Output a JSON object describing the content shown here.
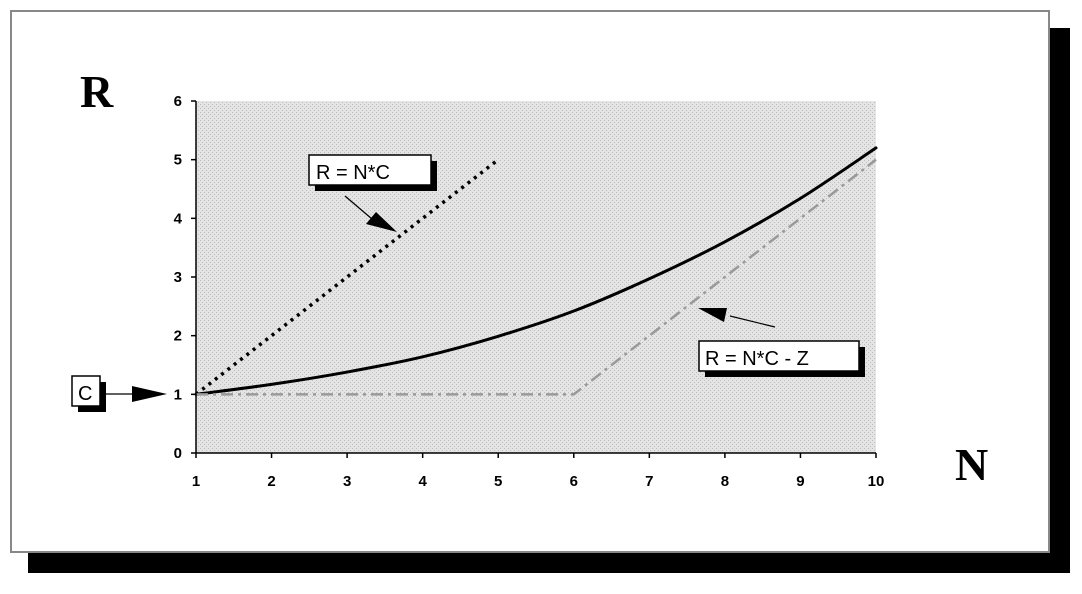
{
  "chart_data": {
    "type": "line",
    "xlabel": "N",
    "ylabel": "R",
    "xlim": [
      1,
      10
    ],
    "ylim": [
      0,
      6
    ],
    "x_ticks": [
      1,
      2,
      3,
      4,
      5,
      6,
      7,
      8,
      9,
      10
    ],
    "y_ticks": [
      0,
      1,
      2,
      3,
      4,
      5,
      6
    ],
    "grid": false,
    "background": "stippled gray",
    "series": [
      {
        "name": "R = N*C",
        "style": "dotted",
        "color": "#000000",
        "x": [
          1,
          2,
          3,
          4,
          5
        ],
        "y": [
          1,
          2,
          3,
          4,
          5
        ]
      },
      {
        "name": "",
        "style": "solid",
        "color": "#000000",
        "x": [
          1,
          2,
          3,
          4,
          5,
          6,
          7,
          8,
          9,
          10
        ],
        "y": [
          1.0,
          1.17,
          1.38,
          1.64,
          1.99,
          2.42,
          2.97,
          3.6,
          4.34,
          5.2
        ]
      },
      {
        "name": "R = N*C - Z",
        "style": "dash-dot",
        "color": "#999999",
        "x": [
          1,
          6,
          10
        ],
        "y": [
          1,
          1,
          5
        ]
      }
    ],
    "annotations": [
      {
        "text": "R = N*C",
        "points_to": [
          3.65,
          3.75
        ]
      },
      {
        "text": "R = N*C - Z",
        "points_to": [
          7.55,
          2.45
        ]
      },
      {
        "text": "C",
        "points_to": [
          1,
          1
        ]
      }
    ]
  }
}
